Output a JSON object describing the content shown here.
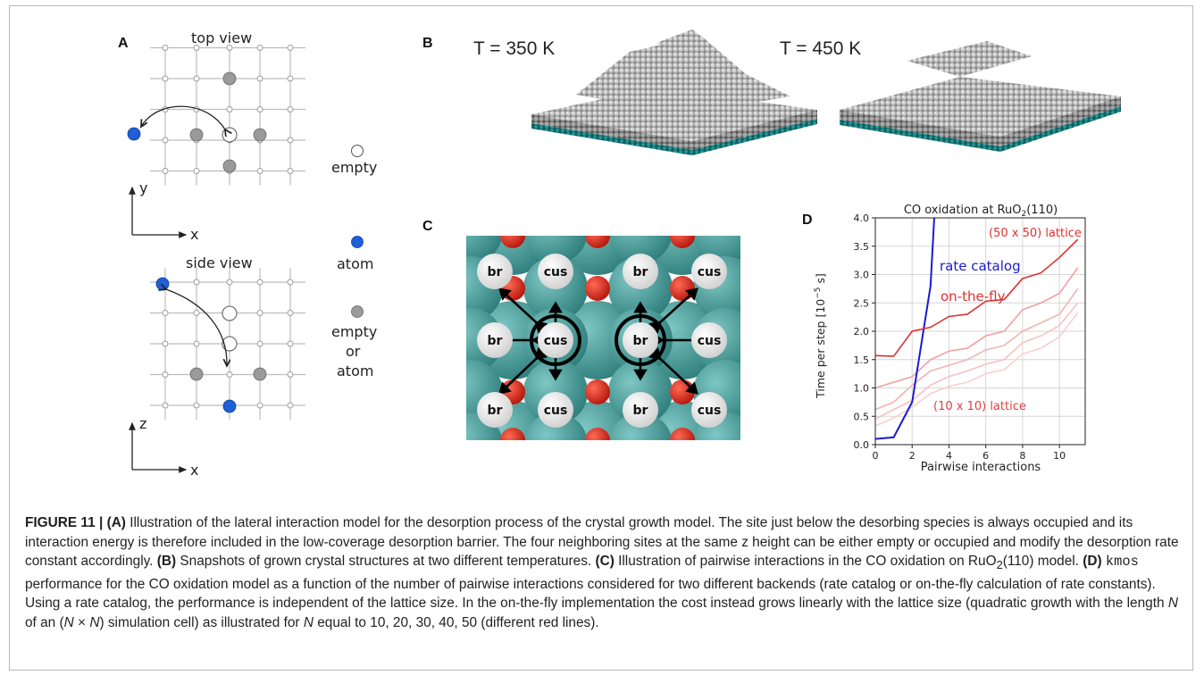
{
  "panels": {
    "A": {
      "label": "A",
      "top_view": "top view",
      "side_view": "side view",
      "axis_y": "y",
      "axis_x1": "x",
      "axis_z": "z",
      "axis_x2": "x",
      "legend_empty": "empty",
      "legend_atom": "atom",
      "legend_either_1": "empty",
      "legend_either_2": "or",
      "legend_either_3": "atom",
      "colors": {
        "atom": "#1f5fd8",
        "either": "#9a9a9a",
        "empty": "#ffffff",
        "grid": "#bdbdbd"
      }
    },
    "B": {
      "label": "B",
      "left_temp": "T = 350 K",
      "right_temp": "T = 450 K",
      "colors": {
        "atom": "#b8b8b8",
        "substrate": "#1f7f7f"
      }
    },
    "C": {
      "label": "C",
      "site_br": "br",
      "site_cus": "cus",
      "colors": {
        "ru": "#3c8c8a",
        "o": "#cc2a1d",
        "site": "#f2f2f2"
      }
    },
    "D": {
      "label": "D"
    }
  },
  "chart_data": {
    "type": "line",
    "title": "CO oxidation at RuO",
    "title_sub": "2",
    "title_tail": "(110)",
    "xlabel": "Pairwise interactions",
    "ylabel": "Time per step [10",
    "ylabel_sup": "−5",
    "ylabel_tail": " s]",
    "xlim": [
      0,
      11.4
    ],
    "ylim": [
      0,
      4.0
    ],
    "xticks": [
      "0",
      "2",
      "4",
      "6",
      "8",
      "10"
    ],
    "yticks": [
      "0.0",
      "0.5",
      "1.0",
      "1.5",
      "2.0",
      "2.5",
      "3.0",
      "3.5",
      "4.0"
    ],
    "grid": true,
    "annotations": {
      "rate_catalog": "rate catalog",
      "on_the_fly": "on-the-fly",
      "lattice_50": "(50 x 50) lattice",
      "lattice_10": "(10 x 10) lattice"
    },
    "series": [
      {
        "name": "rate catalog",
        "color": "#1a1ad6",
        "x": [
          0,
          1,
          2,
          3,
          3.2
        ],
        "y": [
          0.1,
          0.13,
          0.75,
          2.8,
          4.0
        ]
      },
      {
        "color": "#e03030",
        "x": [
          0,
          1,
          2,
          3,
          4,
          5,
          6,
          7,
          8,
          9,
          10,
          11
        ],
        "y": [
          1.57,
          1.56,
          2.0,
          2.07,
          2.26,
          2.3,
          2.53,
          2.56,
          2.93,
          3.03,
          3.3,
          3.62
        ]
      },
      {
        "color": "#f2a0a0",
        "x": [
          0,
          1,
          2,
          3,
          4,
          5,
          6,
          7,
          8,
          9,
          10,
          11
        ],
        "y": [
          1.0,
          1.1,
          1.2,
          1.5,
          1.65,
          1.7,
          1.92,
          2.0,
          2.38,
          2.5,
          2.67,
          3.12
        ]
      },
      {
        "color": "#f4b3b3",
        "x": [
          0,
          1,
          2,
          3,
          4,
          5,
          6,
          7,
          8,
          9,
          10,
          11
        ],
        "y": [
          0.62,
          0.75,
          1.05,
          1.3,
          1.4,
          1.5,
          1.67,
          1.75,
          2.0,
          2.15,
          2.3,
          2.75
        ]
      },
      {
        "color": "#f6c2c2",
        "x": [
          0,
          1,
          2,
          3,
          4,
          5,
          6,
          7,
          8,
          9,
          10,
          11
        ],
        "y": [
          0.45,
          0.62,
          0.78,
          1.05,
          1.2,
          1.3,
          1.42,
          1.5,
          1.8,
          1.92,
          2.1,
          2.5
        ]
      },
      {
        "color": "#f8cfcf",
        "x": [
          0,
          1,
          2,
          3,
          4,
          5,
          6,
          7,
          8,
          9,
          10,
          11
        ],
        "y": [
          0.33,
          0.47,
          0.66,
          0.9,
          1.03,
          1.1,
          1.25,
          1.32,
          1.6,
          1.7,
          1.9,
          2.33
        ]
      }
    ]
  },
  "caption": {
    "figure_label": "FIGURE 11 |",
    "p1_label": "(A)",
    "p1_text": " Illustration of the lateral interaction model for the desorption process of the crystal growth model. The site just below the desorbing species is always occupied and its interaction energy is therefore included in the low-coverage desorption barrier. The four neighboring sites at the same z height can be either empty or occupied and modify the desorption rate constant accordingly. ",
    "p2_label": "(B)",
    "p2_text": " Snapshots of grown crystal structures at two different temperatures. ",
    "p3_label": "(C)",
    "p3_text_a": " Illustration of pairwise interactions in the CO oxidation on RuO",
    "p3_sub": "2",
    "p3_text_b": "(110) model. ",
    "p4_label": "(D)",
    "p4_code": "kmos",
    "p4_text_a": " performance for the CO oxidation model as a function of the number of pairwise interactions considered for two different backends (rate catalog or on-the-fly calculation of rate constants). Using a rate catalog, the performance is independent of the lattice size. In the on-the-fly implementation the cost instead grows linearly with the lattice size (quadratic growth with the length ",
    "p4_N1": "N",
    "p4_text_b": " of an (",
    "p4_N2": "N",
    "p4_times": " × ",
    "p4_N3": "N",
    "p4_text_c": ") simulation cell) as illustrated for ",
    "p4_N4": "N",
    "p4_text_d": " equal to 10, 20, 30, 40, 50 (different red lines)."
  }
}
